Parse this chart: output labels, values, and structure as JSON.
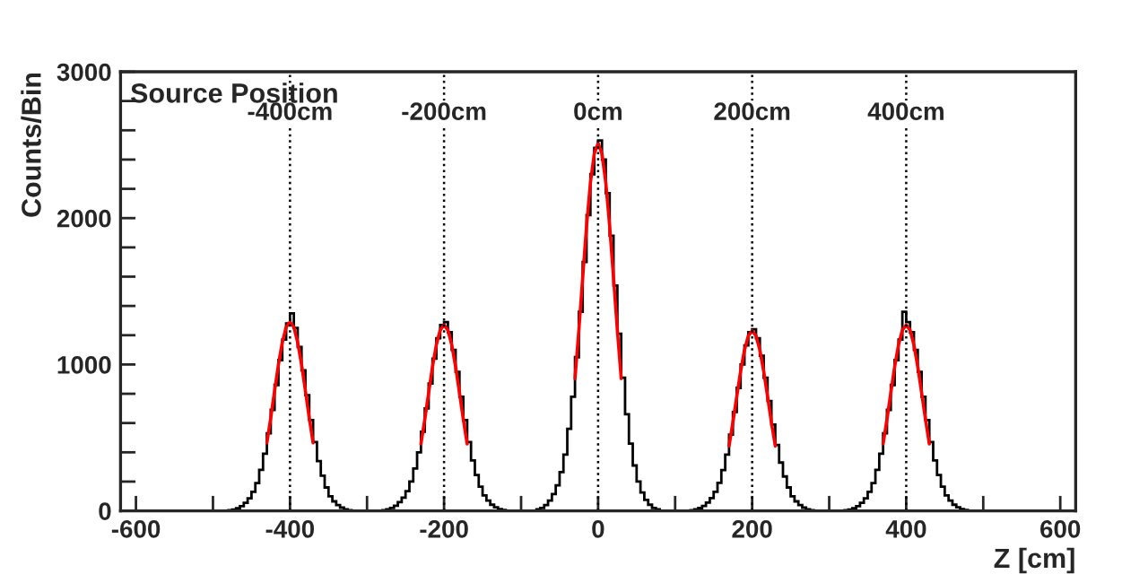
{
  "chart_data": {
    "type": "histogram",
    "xlabel": "Z [cm]",
    "ylabel": "Counts/Bin",
    "annotations": [
      "Source Position"
    ],
    "color": "#000000",
    "bins": [
      -520,
      -515,
      -510,
      -505,
      -500,
      -495,
      -490,
      -485,
      -480,
      -475,
      -470,
      -465,
      -460,
      -455,
      -450,
      -445,
      -440,
      -435,
      -430,
      -425,
      -420,
      -415,
      -410,
      -405,
      -400,
      -395,
      -390,
      -385,
      -380,
      -375,
      -370,
      -365,
      -360,
      -355,
      -350,
      -345,
      -340,
      -335,
      -330,
      -325,
      -320,
      -315,
      -310,
      -305,
      -300,
      -295,
      -290,
      -285,
      -280,
      -275,
      -270,
      -265,
      -260,
      -255,
      -250,
      -245,
      -240,
      -235,
      -230,
      -225,
      -220,
      -215,
      -210,
      -205,
      -200,
      -195,
      -190,
      -185,
      -180,
      -175,
      -170,
      -165,
      -160,
      -155,
      -150,
      -145,
      -140,
      -135,
      -130,
      -125,
      -120,
      -115,
      -110,
      -105,
      -100,
      -95,
      -90,
      -85,
      -80,
      -75,
      -70,
      -65,
      -60,
      -55,
      -50,
      -45,
      -40,
      -35,
      -30,
      -25,
      -20,
      -15,
      -10,
      -5,
      0,
      5,
      10,
      15,
      20,
      25,
      30,
      35,
      40,
      45,
      50,
      55,
      60,
      65,
      70,
      75,
      80,
      85,
      90,
      95,
      100,
      105,
      110,
      115,
      120,
      125,
      130,
      135,
      140,
      145,
      150,
      155,
      160,
      165,
      170,
      175,
      180,
      185,
      190,
      195,
      200,
      205,
      210,
      215,
      220,
      225,
      230,
      235,
      240,
      245,
      250,
      255,
      260,
      265,
      270,
      275,
      280,
      285,
      290,
      295,
      300,
      305,
      310,
      315,
      320,
      325,
      330,
      335,
      340,
      345,
      350,
      355,
      360,
      365,
      370,
      375,
      380,
      385,
      390,
      395,
      400,
      405,
      410,
      415,
      420,
      425,
      430,
      435,
      440,
      445,
      450,
      455,
      460,
      465,
      470,
      475,
      480,
      485,
      490,
      495,
      500,
      505,
      510,
      515,
      520
    ],
    "values": [
      0,
      0,
      0,
      0,
      0,
      0,
      0,
      0,
      4,
      9,
      18,
      32,
      55,
      85,
      130,
      190,
      280,
      390,
      530,
      690,
      860,
      1030,
      1170,
      1280,
      1350,
      1250,
      1120,
      960,
      790,
      620,
      470,
      340,
      240,
      160,
      100,
      65,
      40,
      22,
      10,
      5,
      0,
      0,
      0,
      0,
      0,
      0,
      0,
      0,
      5,
      10,
      20,
      35,
      60,
      90,
      135,
      200,
      290,
      400,
      540,
      700,
      870,
      1040,
      1180,
      1270,
      1290,
      1220,
      1100,
      950,
      780,
      620,
      470,
      345,
      245,
      165,
      105,
      70,
      42,
      24,
      12,
      6,
      0,
      0,
      0,
      0,
      0,
      0,
      0,
      0,
      10,
      20,
      40,
      70,
      115,
      175,
      265,
      385,
      560,
      780,
      1050,
      1360,
      1700,
      2020,
      2300,
      2480,
      2530,
      2400,
      2170,
      1880,
      1540,
      1210,
      910,
      660,
      460,
      310,
      200,
      125,
      75,
      42,
      20,
      10,
      0,
      0,
      0,
      0,
      0,
      0,
      0,
      0,
      5,
      10,
      19,
      33,
      57,
      87,
      130,
      192,
      278,
      385,
      520,
      675,
      840,
      1000,
      1130,
      1220,
      1240,
      1180,
      1060,
      910,
      750,
      590,
      450,
      330,
      235,
      160,
      100,
      65,
      40,
      22,
      11,
      5,
      0,
      0,
      0,
      0,
      0,
      0,
      0,
      0,
      4,
      9,
      18,
      32,
      55,
      85,
      130,
      190,
      280,
      390,
      530,
      690,
      860,
      1030,
      1170,
      1360,
      1290,
      1220,
      1100,
      950,
      780,
      620,
      470,
      345,
      245,
      165,
      105,
      70,
      42,
      24,
      12,
      6,
      0,
      0,
      0,
      0,
      0,
      0,
      0,
      0
    ],
    "series": [
      {
        "type": "line",
        "color": "#ff0000",
        "x": [
          -430,
          -425,
          -420,
          -415,
          -410,
          -405,
          -400,
          -395,
          -390,
          -385,
          -380,
          -375,
          -370
        ],
        "values": [
          465,
          635,
          820,
          1000,
          1150,
          1255,
          1290,
          1255,
          1150,
          1000,
          820,
          635,
          465
        ]
      },
      {
        "type": "line",
        "color": "#ff0000",
        "x": [
          -230,
          -225,
          -220,
          -215,
          -210,
          -205,
          -200,
          -195,
          -190,
          -185,
          -180,
          -175,
          -170
        ],
        "values": [
          457,
          625,
          806,
          985,
          1134,
          1235,
          1270,
          1235,
          1134,
          985,
          806,
          625,
          457
        ]
      },
      {
        "type": "line",
        "color": "#ff0000",
        "x": [
          -30,
          -25,
          -20,
          -15,
          -10,
          -5,
          0,
          5,
          10,
          15,
          20,
          25,
          30
        ],
        "values": [
          904,
          1235,
          1594,
          1945,
          2241,
          2440,
          2510,
          2440,
          2241,
          1945,
          1594,
          1235,
          904
        ]
      },
      {
        "type": "line",
        "color": "#ff0000",
        "x": [
          170,
          175,
          180,
          185,
          190,
          195,
          200,
          205,
          210,
          215,
          220,
          225,
          230
        ],
        "values": [
          443,
          605,
          781,
          953,
          1098,
          1196,
          1230,
          1196,
          1098,
          953,
          781,
          605,
          443
        ]
      },
      {
        "type": "line",
        "color": "#ff0000",
        "x": [
          370,
          375,
          380,
          385,
          390,
          395,
          400,
          405,
          410,
          415,
          420,
          425,
          430
        ],
        "values": [
          457,
          625,
          806,
          985,
          1134,
          1235,
          1270,
          1235,
          1134,
          985,
          806,
          625,
          457
        ]
      }
    ],
    "ref_lines": [
      {
        "axis": "x",
        "value": -400,
        "label": "-400cm",
        "color": "#000000",
        "line_style": "dotted"
      },
      {
        "axis": "x",
        "value": -200,
        "label": "-200cm",
        "color": "#000000",
        "line_style": "dotted"
      },
      {
        "axis": "x",
        "value": 0,
        "label": "0cm",
        "color": "#000000",
        "line_style": "dotted"
      },
      {
        "axis": "x",
        "value": 200,
        "label": "200cm",
        "color": "#000000",
        "line_style": "dotted"
      },
      {
        "axis": "x",
        "value": 400,
        "label": "400cm",
        "color": "#000000",
        "line_style": "dotted"
      }
    ],
    "xlim": [
      -620,
      620
    ],
    "ylim": [
      0,
      3000
    ],
    "xticks": [
      -600,
      {
        "value": -500,
        "label": null
      },
      -400,
      {
        "value": -300,
        "label": null
      },
      -200,
      {
        "value": -100,
        "label": null
      },
      0,
      {
        "value": 100,
        "label": null
      },
      200,
      {
        "value": 300,
        "label": null
      },
      400,
      {
        "value": 500,
        "label": null
      },
      600
    ],
    "yticks": [
      0,
      {
        "value": 200,
        "label": null
      },
      {
        "value": 400,
        "label": null
      },
      {
        "value": 600,
        "label": null
      },
      {
        "value": 800,
        "label": null
      },
      1000,
      {
        "value": 1200,
        "label": null
      },
      {
        "value": 1400,
        "label": null
      },
      {
        "value": 1600,
        "label": null
      },
      {
        "value": 1800,
        "label": null
      },
      2000,
      {
        "value": 2200,
        "label": null
      },
      {
        "value": 2400,
        "label": null
      },
      {
        "value": 2600,
        "label": null
      },
      {
        "value": 2800,
        "label": null
      },
      3000
    ],
    "grid": false
  }
}
